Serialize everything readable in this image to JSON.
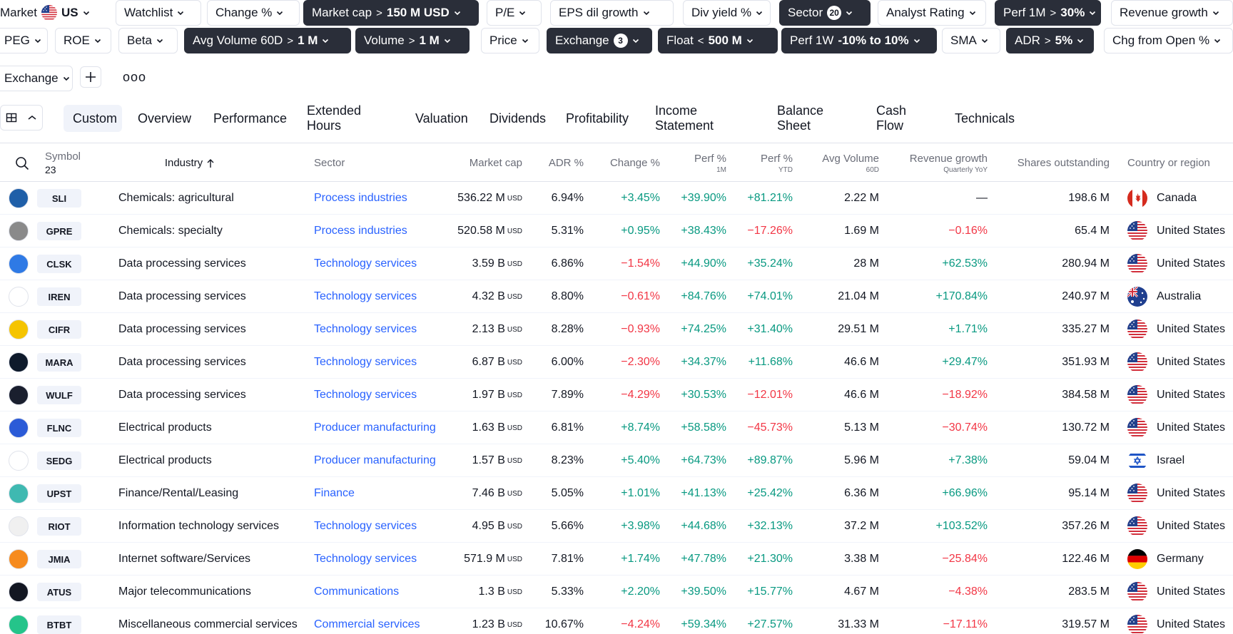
{
  "filters": {
    "row1": [
      {
        "label": "Market",
        "value": "US",
        "kind": "plain"
      },
      {
        "label": "Watchlist"
      },
      {
        "label": "Change %"
      },
      {
        "label": "Market cap",
        "op": ">",
        "value": "150 M USD",
        "active": true
      },
      {
        "label": "P/E"
      },
      {
        "label": "EPS dil growth"
      },
      {
        "label": "Div yield %"
      },
      {
        "label": "Sector",
        "badge": "20",
        "active": true
      },
      {
        "label": "Analyst Rating"
      },
      {
        "label": "Perf 1M",
        "op": ">",
        "value": "30%",
        "active": true
      },
      {
        "label": "Revenue growth"
      }
    ],
    "row2": [
      {
        "label": "PEG"
      },
      {
        "label": "ROE"
      },
      {
        "label": "Beta"
      },
      {
        "label": "Avg Volume 60D",
        "op": ">",
        "value": "1 M",
        "active": true
      },
      {
        "label": "Volume",
        "op": ">",
        "value": "1 M",
        "active": true
      },
      {
        "label": "Price"
      },
      {
        "label": "Exchange",
        "badge": "3",
        "active": true
      },
      {
        "label": "Float",
        "op": "<",
        "value": "500 M",
        "active": true
      },
      {
        "label": "Perf 1W",
        "value": "-10% to 10%",
        "active": true
      },
      {
        "label": "SMA"
      },
      {
        "label": "ADR",
        "op": ">",
        "value": "5%",
        "active": true
      },
      {
        "label": "Chg from Open %"
      }
    ],
    "row3": [
      {
        "label": "Exchange"
      }
    ],
    "more_label": "ooo"
  },
  "tabs": [
    "Custom",
    "Overview",
    "Performance",
    "Extended Hours",
    "Valuation",
    "Dividends",
    "Profitability",
    "Income Statement",
    "Balance Sheet",
    "Cash Flow",
    "Technicals"
  ],
  "active_tab": "Custom",
  "table": {
    "headers": {
      "symbol": "Symbol",
      "symbol_count": "23",
      "industry": "Industry",
      "sector": "Sector",
      "market_cap": "Market cap",
      "adr": "ADR %",
      "change": "Change %",
      "perf1m": "Perf %",
      "perf1m_sub": "1M",
      "perfytd": "Perf %",
      "perfytd_sub": "YTD",
      "avgvol": "Avg Volume",
      "avgvol_sub": "60D",
      "revgrowth": "Revenue growth",
      "revgrowth_sub": "Quarterly YoY",
      "shares": "Shares outstanding",
      "country": "Country or region"
    },
    "rows": [
      {
        "sym": "SLI",
        "logo_color": "#1f5fa8",
        "industry": "Chemicals: agricultural",
        "sector": "Process industries",
        "mcap": "536.22 M",
        "mcap_unit": "USD",
        "adr": "6.94%",
        "chg": "+3.45%",
        "p1m": "+39.90%",
        "pytd": "+81.21%",
        "vol": "2.22 M",
        "rev": "—",
        "shares": "198.6 M",
        "country": "Canada",
        "flag": "ca"
      },
      {
        "sym": "GPRE",
        "logo_color": "#8a8a8a",
        "industry": "Chemicals: specialty",
        "sector": "Process industries",
        "mcap": "520.58 M",
        "mcap_unit": "USD",
        "adr": "5.31%",
        "chg": "+0.95%",
        "p1m": "+38.43%",
        "pytd": "−17.26%",
        "vol": "1.69 M",
        "rev": "−0.16%",
        "shares": "65.4 M",
        "country": "United States",
        "flag": "us"
      },
      {
        "sym": "CLSK",
        "logo_color": "#2f7ae5",
        "industry": "Data processing services",
        "sector": "Technology services",
        "mcap": "3.59 B",
        "mcap_unit": "USD",
        "adr": "6.86%",
        "chg": "−1.54%",
        "p1m": "+44.90%",
        "pytd": "+35.24%",
        "vol": "28 M",
        "rev": "+62.53%",
        "shares": "280.94 M",
        "country": "United States",
        "flag": "us"
      },
      {
        "sym": "IREN",
        "logo_color": "#ffffff",
        "industry": "Data processing services",
        "sector": "Technology services",
        "mcap": "4.32 B",
        "mcap_unit": "USD",
        "adr": "8.80%",
        "chg": "−0.61%",
        "p1m": "+84.76%",
        "pytd": "+74.01%",
        "vol": "21.04 M",
        "rev": "+170.84%",
        "shares": "240.97 M",
        "country": "Australia",
        "flag": "au"
      },
      {
        "sym": "CIFR",
        "logo_color": "#f5c400",
        "industry": "Data processing services",
        "sector": "Technology services",
        "mcap": "2.13 B",
        "mcap_unit": "USD",
        "adr": "8.28%",
        "chg": "−0.93%",
        "p1m": "+74.25%",
        "pytd": "+31.40%",
        "vol": "29.51 M",
        "rev": "+1.71%",
        "shares": "335.27 M",
        "country": "United States",
        "flag": "us"
      },
      {
        "sym": "MARA",
        "logo_color": "#0e1a2b",
        "industry": "Data processing services",
        "sector": "Technology services",
        "mcap": "6.87 B",
        "mcap_unit": "USD",
        "adr": "6.00%",
        "chg": "−2.30%",
        "p1m": "+34.37%",
        "pytd": "+11.68%",
        "vol": "46.6 M",
        "rev": "+29.47%",
        "shares": "351.93 M",
        "country": "United States",
        "flag": "us"
      },
      {
        "sym": "WULF",
        "logo_color": "#1a1f2e",
        "industry": "Data processing services",
        "sector": "Technology services",
        "mcap": "1.97 B",
        "mcap_unit": "USD",
        "adr": "7.89%",
        "chg": "−4.29%",
        "p1m": "+30.53%",
        "pytd": "−12.01%",
        "vol": "46.6 M",
        "rev": "−18.92%",
        "shares": "384.58 M",
        "country": "United States",
        "flag": "us"
      },
      {
        "sym": "FLNC",
        "logo_color": "#2b5bd7",
        "industry": "Electrical products",
        "sector": "Producer manufacturing",
        "mcap": "1.63 B",
        "mcap_unit": "USD",
        "adr": "6.81%",
        "chg": "+8.74%",
        "p1m": "+58.58%",
        "pytd": "−45.73%",
        "vol": "5.13 M",
        "rev": "−30.74%",
        "shares": "130.72 M",
        "country": "United States",
        "flag": "us"
      },
      {
        "sym": "SEDG",
        "logo_color": "#ffffff",
        "industry": "Electrical products",
        "sector": "Producer manufacturing",
        "mcap": "1.57 B",
        "mcap_unit": "USD",
        "adr": "8.23%",
        "chg": "+5.40%",
        "p1m": "+64.73%",
        "pytd": "+89.87%",
        "vol": "5.96 M",
        "rev": "+7.38%",
        "shares": "59.04 M",
        "country": "Israel",
        "flag": "il"
      },
      {
        "sym": "UPST",
        "logo_color": "#3fb9b1",
        "industry": "Finance/Rental/Leasing",
        "sector": "Finance",
        "mcap": "7.46 B",
        "mcap_unit": "USD",
        "adr": "5.05%",
        "chg": "+1.01%",
        "p1m": "+41.13%",
        "pytd": "+25.42%",
        "vol": "6.36 M",
        "rev": "+66.96%",
        "shares": "95.14 M",
        "country": "United States",
        "flag": "us"
      },
      {
        "sym": "RIOT",
        "logo_color": "#f0f0f0",
        "industry": "Information technology services",
        "sector": "Technology services",
        "mcap": "4.95 B",
        "mcap_unit": "USD",
        "adr": "5.66%",
        "chg": "+3.98%",
        "p1m": "+44.68%",
        "pytd": "+32.13%",
        "vol": "37.2 M",
        "rev": "+103.52%",
        "shares": "357.26 M",
        "country": "United States",
        "flag": "us"
      },
      {
        "sym": "JMIA",
        "logo_color": "#f68b1e",
        "industry": "Internet software/Services",
        "sector": "Technology services",
        "mcap": "571.9 M",
        "mcap_unit": "USD",
        "adr": "7.81%",
        "chg": "+1.74%",
        "p1m": "+47.78%",
        "pytd": "+21.30%",
        "vol": "3.38 M",
        "rev": "−25.84%",
        "shares": "122.46 M",
        "country": "Germany",
        "flag": "de"
      },
      {
        "sym": "ATUS",
        "logo_color": "#131722",
        "industry": "Major telecommunications",
        "sector": "Communications",
        "mcap": "1.3 B",
        "mcap_unit": "USD",
        "adr": "5.33%",
        "chg": "+2.20%",
        "p1m": "+39.50%",
        "pytd": "+15.77%",
        "vol": "4.67 M",
        "rev": "−4.38%",
        "shares": "283.5 M",
        "country": "United States",
        "flag": "us"
      },
      {
        "sym": "BTBT",
        "logo_color": "#25c48a",
        "industry": "Miscellaneous commercial services",
        "sector": "Commercial services",
        "mcap": "1.23 B",
        "mcap_unit": "USD",
        "adr": "10.67%",
        "chg": "−4.24%",
        "p1m": "+59.34%",
        "pytd": "+27.57%",
        "vol": "31.33 M",
        "rev": "−17.11%",
        "shares": "319.57 M",
        "country": "United States",
        "flag": "us"
      }
    ]
  },
  "colors": {
    "accent": "#2962ff",
    "positive": "#089981",
    "negative": "#f23645",
    "chip_active": "#2a2e39"
  }
}
